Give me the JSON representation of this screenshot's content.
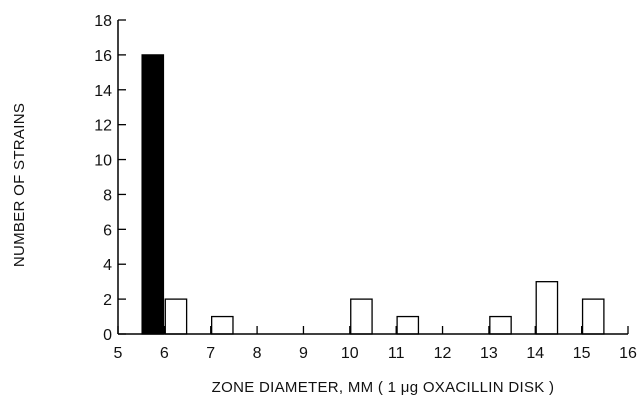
{
  "chart_data": {
    "type": "bar",
    "title": "",
    "xlabel": "ZONE DIAMETER, MM ( 1 μg OXACILLIN DISK )",
    "ylabel": "NUMBER OF STRAINS",
    "xlim": [
      5,
      16
    ],
    "ylim": [
      0,
      18
    ],
    "xticks": [
      5,
      6,
      7,
      8,
      9,
      10,
      11,
      12,
      13,
      14,
      15,
      16
    ],
    "yticks": [
      0,
      2,
      4,
      6,
      8,
      10,
      12,
      14,
      16,
      18
    ],
    "grid": false,
    "bars": [
      {
        "x": 5.75,
        "value": 16,
        "fill": "black"
      },
      {
        "x": 6.25,
        "value": 2,
        "fill": "white"
      },
      {
        "x": 7.25,
        "value": 1,
        "fill": "white"
      },
      {
        "x": 10.25,
        "value": 2,
        "fill": "white"
      },
      {
        "x": 11.25,
        "value": 1,
        "fill": "white"
      },
      {
        "x": 13.25,
        "value": 1,
        "fill": "white"
      },
      {
        "x": 14.25,
        "value": 3,
        "fill": "white"
      },
      {
        "x": 15.25,
        "value": 2,
        "fill": "white"
      }
    ],
    "colors": {
      "solid": "#000000",
      "open": "#ffffff",
      "stroke": "#000000"
    }
  }
}
